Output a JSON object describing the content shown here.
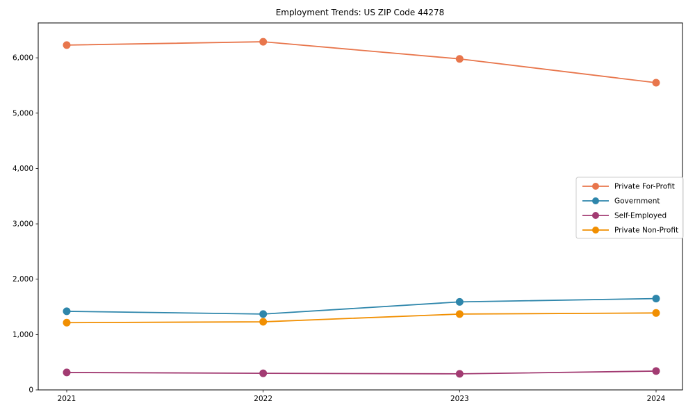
{
  "title": "Employment Trends: US ZIP Code 44278",
  "chart_data": {
    "type": "line",
    "title": "Employment Trends: US ZIP Code 44278",
    "x": [
      2021,
      2022,
      2023,
      2024
    ],
    "xtick_labels": [
      "2021",
      "2022",
      "2023",
      "2024"
    ],
    "series": [
      {
        "name": "Private For-Profit",
        "color": "#E8764C",
        "values": [
          6230,
          6290,
          5980,
          5550
        ]
      },
      {
        "name": "Government",
        "color": "#2E86AB",
        "values": [
          1420,
          1370,
          1590,
          1650
        ]
      },
      {
        "name": "Self-Employed",
        "color": "#A23B72",
        "values": [
          315,
          300,
          290,
          340
        ]
      },
      {
        "name": "Private Non-Profit",
        "color": "#F18F01",
        "values": [
          1215,
          1230,
          1370,
          1390
        ]
      }
    ],
    "xlabel": "",
    "ylabel": "",
    "ylim": [
      0,
      6630
    ],
    "yticks": [
      0,
      1000,
      2000,
      3000,
      4000,
      5000,
      6000
    ],
    "ytick_labels": [
      "0",
      "1,000",
      "2,000",
      "3,000",
      "4,000",
      "5,000",
      "6,000"
    ],
    "grid": false,
    "legend_position": "center-right",
    "marker": "circle",
    "axis_color": "#000000",
    "background_color": "#ffffff",
    "legend_border_color": "#cccccc"
  }
}
